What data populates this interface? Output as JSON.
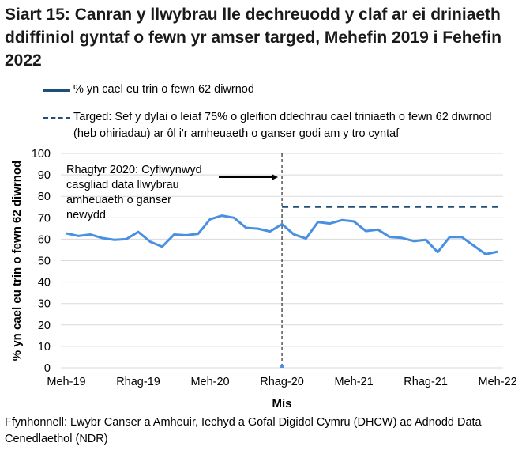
{
  "title": "Siart 15: Canran y llwybrau lle dechreuodd y claf ar ei driniaeth ddiffiniol gyntaf o fewn yr amser targed, Mehefin 2019 i Fehefin 2022",
  "source": "Ffynhonnell: Lwybr Canser a Amheuir, Iechyd a Gofal Digidol Cymru (DHCW) ac Adnodd Data Cenedlaethol (NDR)",
  "chart_data": {
    "type": "line",
    "xlabel": "Mis",
    "ylabel": "% yn cael eu trin o fewn 62 diwrnod",
    "ylim": [
      0,
      100
    ],
    "yticks": [
      0,
      10,
      20,
      30,
      40,
      50,
      60,
      70,
      80,
      90,
      100
    ],
    "xtick_labels": [
      "Meh-19",
      "Rhag-19",
      "Meh-20",
      "Rhag-20",
      "Meh-21",
      "Rhag-21",
      "Meh-22"
    ],
    "grid": true,
    "legend_position": "top",
    "series": [
      {
        "name": "% yn cael eu trin o fewn 62 diwrnod",
        "color": "#4a90e2",
        "values": [
          62.7,
          61.5,
          62.2,
          60.5,
          59.7,
          60,
          63.4,
          58.8,
          56.5,
          62.2,
          61.8,
          62.5,
          69.3,
          71,
          70,
          65.3,
          64.9,
          63.6,
          67,
          62.2,
          60.3,
          68,
          67.3,
          68.9,
          68.3,
          63.8,
          64.5,
          61,
          60.6,
          59.1,
          59.7,
          54,
          61,
          61,
          57,
          53,
          54.2
        ]
      },
      {
        "name": "Targed: Sef y dylai o leiaf 75% o gleifion ddechrau cael triniaeth o fewn 62 diwrnod (heb ohiriadau) ar ôl i'r amheuaeth o ganser godi am y tro cyntaf",
        "color": "#1f4e79",
        "dashed": true,
        "value": 75,
        "from": "Rhag-20",
        "to": "Meh-22"
      }
    ],
    "annotation": {
      "text_lines": [
        "Rhagfyr 2020: Cyflwynwyd",
        "casgliad data llwybrau",
        "amheuaeth o ganser",
        "newydd"
      ],
      "at": "Rhag-20"
    }
  }
}
